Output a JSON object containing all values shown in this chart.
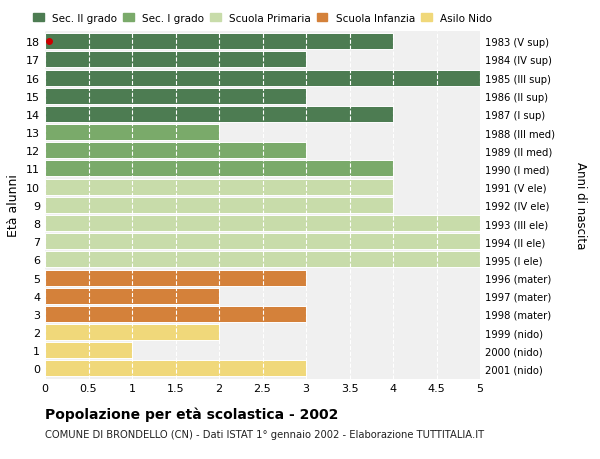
{
  "ages": [
    18,
    17,
    16,
    15,
    14,
    13,
    12,
    11,
    10,
    9,
    8,
    7,
    6,
    5,
    4,
    3,
    2,
    1,
    0
  ],
  "values": [
    4,
    3,
    5,
    3,
    4,
    2,
    3,
    4,
    4,
    4,
    5,
    5,
    5,
    3,
    2,
    3,
    2,
    1,
    3
  ],
  "right_labels": [
    "1983 (V sup)",
    "1984 (IV sup)",
    "1985 (III sup)",
    "1986 (II sup)",
    "1987 (I sup)",
    "1988 (III med)",
    "1989 (II med)",
    "1990 (I med)",
    "1991 (V ele)",
    "1992 (IV ele)",
    "1993 (III ele)",
    "1994 (II ele)",
    "1995 (I ele)",
    "1996 (mater)",
    "1997 (mater)",
    "1998 (mater)",
    "1999 (nido)",
    "2000 (nido)",
    "2001 (nido)"
  ],
  "colors": [
    "#4d7c52",
    "#4d7c52",
    "#4d7c52",
    "#4d7c52",
    "#4d7c52",
    "#7aaa6a",
    "#7aaa6a",
    "#7aaa6a",
    "#c8dcaa",
    "#c8dcaa",
    "#c8dcaa",
    "#c8dcaa",
    "#c8dcaa",
    "#d4813a",
    "#d4813a",
    "#d4813a",
    "#f0d87a",
    "#f0d87a",
    "#f0d87a"
  ],
  "legend_labels": [
    "Sec. II grado",
    "Sec. I grado",
    "Scuola Primaria",
    "Scuola Infanzia",
    "Asilo Nido"
  ],
  "legend_colors": [
    "#4d7c52",
    "#7aaa6a",
    "#c8dcaa",
    "#d4813a",
    "#f0d87a"
  ],
  "ylabel_left": "Età alunni",
  "ylabel_right": "Anni di nascita",
  "xlim": [
    0,
    5.0
  ],
  "xticks": [
    0,
    0.5,
    1.0,
    1.5,
    2.0,
    2.5,
    3.0,
    3.5,
    4.0,
    4.5,
    5.0
  ],
  "title": "Popolazione per età scolastica - 2002",
  "subtitle": "COMUNE DI BRONDELLO (CN) - Dati ISTAT 1° gennaio 2002 - Elaborazione TUTTITALIA.IT",
  "background_color": "#ffffff",
  "plot_bg_color": "#f0f0f0",
  "grid_color": "#ffffff",
  "bar_height": 0.88,
  "dot_age": 18,
  "dot_color": "#cc0000"
}
